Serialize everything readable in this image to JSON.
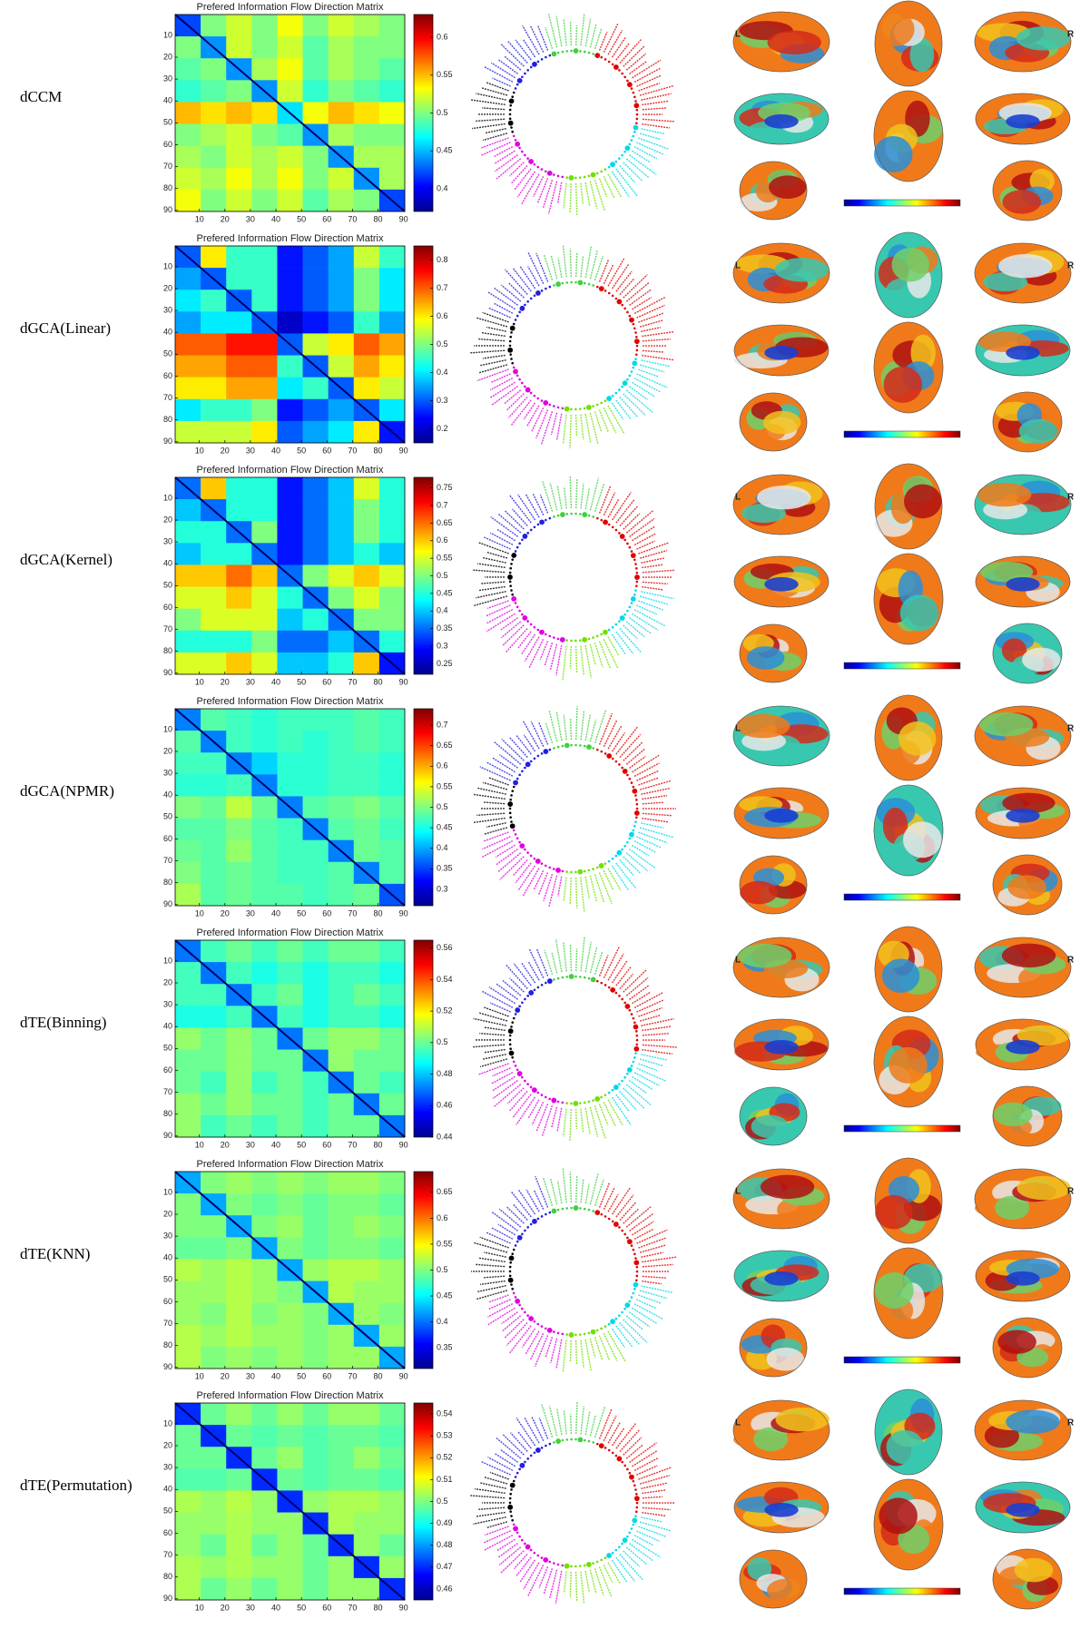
{
  "chart_data": [
    {
      "type": "heatmap",
      "row_label": "dCCM",
      "title": "Prefered Information Flow Direction Matrix",
      "xticks": [
        10,
        20,
        30,
        40,
        50,
        60,
        70,
        80,
        90
      ],
      "yticks": [
        10,
        20,
        30,
        40,
        50,
        60,
        70,
        80,
        90
      ],
      "xlim": [
        0.5,
        90.5
      ],
      "ylim": [
        0.5,
        90.5
      ],
      "y_inverted": true,
      "colormap": "jet",
      "zlim": [
        0.37,
        0.63
      ],
      "zticks": [
        0.4,
        0.45,
        0.5,
        0.55,
        0.6
      ],
      "brain_labels": [
        "L",
        "R"
      ],
      "values": [
        [
          0.42,
          0.5,
          0.52,
          0.5,
          0.53,
          0.5,
          0.52,
          0.51,
          0.5
        ],
        [
          0.5,
          0.44,
          0.52,
          0.5,
          0.52,
          0.49,
          0.51,
          0.5,
          0.5
        ],
        [
          0.49,
          0.5,
          0.44,
          0.51,
          0.53,
          0.49,
          0.51,
          0.5,
          0.49
        ],
        [
          0.48,
          0.49,
          0.5,
          0.44,
          0.52,
          0.48,
          0.5,
          0.49,
          0.48
        ],
        [
          0.55,
          0.54,
          0.55,
          0.54,
          0.46,
          0.53,
          0.55,
          0.54,
          0.53
        ],
        [
          0.5,
          0.51,
          0.52,
          0.5,
          0.49,
          0.44,
          0.51,
          0.5,
          0.5
        ],
        [
          0.51,
          0.5,
          0.52,
          0.51,
          0.52,
          0.5,
          0.44,
          0.51,
          0.51
        ],
        [
          0.52,
          0.51,
          0.53,
          0.51,
          0.53,
          0.5,
          0.52,
          0.44,
          0.51
        ],
        [
          0.53,
          0.5,
          0.52,
          0.5,
          0.52,
          0.49,
          0.51,
          0.5,
          0.42
        ]
      ]
    },
    {
      "type": "heatmap",
      "row_label": "dGCA(Linear)",
      "title": "Prefered Information Flow Direction Matrix",
      "xticks": [
        10,
        20,
        30,
        40,
        50,
        60,
        70,
        80,
        90
      ],
      "yticks": [
        10,
        20,
        30,
        40,
        50,
        60,
        70,
        80,
        90
      ],
      "xlim": [
        0.5,
        90.5
      ],
      "ylim": [
        0.5,
        90.5
      ],
      "y_inverted": true,
      "colormap": "jet",
      "zlim": [
        0.15,
        0.85
      ],
      "zticks": [
        0.2,
        0.3,
        0.4,
        0.5,
        0.6,
        0.7,
        0.8
      ],
      "brain_labels": [
        "L",
        "R"
      ],
      "values": [
        [
          0.3,
          0.6,
          0.45,
          0.45,
          0.25,
          0.3,
          0.35,
          0.55,
          0.45
        ],
        [
          0.35,
          0.3,
          0.45,
          0.45,
          0.25,
          0.3,
          0.35,
          0.5,
          0.4
        ],
        [
          0.4,
          0.45,
          0.3,
          0.45,
          0.25,
          0.3,
          0.35,
          0.5,
          0.4
        ],
        [
          0.35,
          0.4,
          0.4,
          0.3,
          0.2,
          0.25,
          0.3,
          0.45,
          0.35
        ],
        [
          0.7,
          0.7,
          0.75,
          0.75,
          0.3,
          0.55,
          0.6,
          0.7,
          0.65
        ],
        [
          0.65,
          0.65,
          0.7,
          0.7,
          0.45,
          0.3,
          0.55,
          0.65,
          0.6
        ],
        [
          0.6,
          0.6,
          0.65,
          0.65,
          0.4,
          0.45,
          0.3,
          0.6,
          0.55
        ],
        [
          0.4,
          0.45,
          0.45,
          0.5,
          0.25,
          0.3,
          0.35,
          0.3,
          0.4
        ],
        [
          0.55,
          0.55,
          0.55,
          0.6,
          0.3,
          0.35,
          0.4,
          0.6,
          0.25
        ]
      ]
    },
    {
      "type": "heatmap",
      "row_label": "dGCA(Kernel)",
      "title": "Prefered Information Flow Direction Matrix",
      "xticks": [
        10,
        20,
        30,
        40,
        50,
        60,
        70,
        80,
        90
      ],
      "yticks": [
        10,
        20,
        30,
        40,
        50,
        60,
        70,
        80,
        90
      ],
      "xlim": [
        0.5,
        90.5
      ],
      "ylim": [
        0.5,
        90.5
      ],
      "y_inverted": true,
      "colormap": "jet",
      "zlim": [
        0.22,
        0.78
      ],
      "zticks": [
        0.25,
        0.3,
        0.35,
        0.4,
        0.45,
        0.5,
        0.55,
        0.6,
        0.65,
        0.7,
        0.75
      ],
      "brain_labels": [
        "L",
        "R"
      ],
      "values": [
        [
          0.35,
          0.6,
          0.45,
          0.45,
          0.3,
          0.35,
          0.4,
          0.55,
          0.45
        ],
        [
          0.4,
          0.35,
          0.45,
          0.45,
          0.3,
          0.35,
          0.4,
          0.5,
          0.45
        ],
        [
          0.45,
          0.45,
          0.35,
          0.5,
          0.3,
          0.35,
          0.4,
          0.5,
          0.45
        ],
        [
          0.4,
          0.45,
          0.45,
          0.35,
          0.3,
          0.35,
          0.4,
          0.45,
          0.4
        ],
        [
          0.6,
          0.6,
          0.65,
          0.6,
          0.35,
          0.5,
          0.55,
          0.6,
          0.55
        ],
        [
          0.55,
          0.55,
          0.6,
          0.55,
          0.45,
          0.35,
          0.5,
          0.55,
          0.5
        ],
        [
          0.5,
          0.55,
          0.55,
          0.55,
          0.4,
          0.45,
          0.35,
          0.5,
          0.5
        ],
        [
          0.45,
          0.45,
          0.45,
          0.5,
          0.35,
          0.35,
          0.4,
          0.35,
          0.45
        ],
        [
          0.55,
          0.55,
          0.6,
          0.55,
          0.4,
          0.4,
          0.45,
          0.6,
          0.3
        ]
      ]
    },
    {
      "type": "heatmap",
      "row_label": "dGCA(NPMR)",
      "title": "Prefered Information Flow Direction Matrix",
      "xticks": [
        10,
        20,
        30,
        40,
        50,
        60,
        70,
        80,
        90
      ],
      "yticks": [
        10,
        20,
        30,
        40,
        50,
        60,
        70,
        80,
        90
      ],
      "xlim": [
        0.5,
        90.5
      ],
      "ylim": [
        0.5,
        90.5
      ],
      "y_inverted": true,
      "colormap": "jet",
      "zlim": [
        0.26,
        0.74
      ],
      "zticks": [
        0.3,
        0.35,
        0.4,
        0.45,
        0.5,
        0.55,
        0.6,
        0.65,
        0.7
      ],
      "brain_labels": [
        "L",
        "R"
      ],
      "values": [
        [
          0.38,
          0.48,
          0.47,
          0.46,
          0.47,
          0.47,
          0.47,
          0.48,
          0.47
        ],
        [
          0.48,
          0.38,
          0.47,
          0.46,
          0.47,
          0.46,
          0.47,
          0.48,
          0.47
        ],
        [
          0.47,
          0.47,
          0.38,
          0.42,
          0.46,
          0.46,
          0.47,
          0.47,
          0.46
        ],
        [
          0.46,
          0.46,
          0.47,
          0.38,
          0.46,
          0.46,
          0.47,
          0.47,
          0.46
        ],
        [
          0.5,
          0.49,
          0.53,
          0.49,
          0.38,
          0.48,
          0.49,
          0.5,
          0.48
        ],
        [
          0.48,
          0.48,
          0.5,
          0.48,
          0.47,
          0.38,
          0.48,
          0.49,
          0.47
        ],
        [
          0.49,
          0.48,
          0.51,
          0.48,
          0.47,
          0.47,
          0.38,
          0.49,
          0.48
        ],
        [
          0.5,
          0.48,
          0.49,
          0.48,
          0.47,
          0.47,
          0.48,
          0.38,
          0.48
        ],
        [
          0.52,
          0.48,
          0.49,
          0.48,
          0.48,
          0.47,
          0.48,
          0.49,
          0.36
        ]
      ]
    },
    {
      "type": "heatmap",
      "row_label": "dTE(Binning)",
      "title": "Prefered Information Flow Direction Matrix",
      "xticks": [
        10,
        20,
        30,
        40,
        50,
        60,
        70,
        80,
        90
      ],
      "yticks": [
        10,
        20,
        30,
        40,
        50,
        60,
        70,
        80,
        90
      ],
      "xlim": [
        0.5,
        90.5
      ],
      "ylim": [
        0.5,
        90.5
      ],
      "y_inverted": true,
      "colormap": "jet",
      "zlim": [
        0.44,
        0.565
      ],
      "zticks": [
        0.44,
        0.46,
        0.48,
        0.5,
        0.52,
        0.54,
        0.56
      ],
      "brain_labels": [
        "L",
        "R"
      ],
      "values": [
        [
          0.47,
          0.495,
          0.5,
          0.495,
          0.5,
          0.495,
          0.5,
          0.5,
          0.495
        ],
        [
          0.495,
          0.47,
          0.495,
          0.49,
          0.495,
          0.49,
          0.495,
          0.495,
          0.49
        ],
        [
          0.495,
          0.495,
          0.47,
          0.495,
          0.5,
          0.49,
          0.495,
          0.5,
          0.495
        ],
        [
          0.49,
          0.49,
          0.495,
          0.47,
          0.495,
          0.49,
          0.495,
          0.495,
          0.49
        ],
        [
          0.505,
          0.5,
          0.505,
          0.5,
          0.47,
          0.5,
          0.505,
          0.505,
          0.5
        ],
        [
          0.5,
          0.5,
          0.505,
          0.5,
          0.5,
          0.47,
          0.505,
          0.5,
          0.5
        ],
        [
          0.5,
          0.495,
          0.505,
          0.495,
          0.5,
          0.495,
          0.47,
          0.5,
          0.495
        ],
        [
          0.505,
          0.5,
          0.505,
          0.5,
          0.5,
          0.495,
          0.5,
          0.47,
          0.5
        ],
        [
          0.505,
          0.495,
          0.5,
          0.495,
          0.5,
          0.495,
          0.5,
          0.5,
          0.47
        ]
      ]
    },
    {
      "type": "heatmap",
      "row_label": "dTE(KNN)",
      "title": "Prefered Information Flow Direction Matrix",
      "xticks": [
        10,
        20,
        30,
        40,
        50,
        60,
        70,
        80,
        90
      ],
      "yticks": [
        10,
        20,
        30,
        40,
        50,
        60,
        70,
        80,
        90
      ],
      "xlim": [
        0.5,
        90.5
      ],
      "ylim": [
        0.5,
        90.5
      ],
      "y_inverted": true,
      "colormap": "jet",
      "zlim": [
        0.31,
        0.69
      ],
      "zticks": [
        0.35,
        0.4,
        0.45,
        0.5,
        0.55,
        0.6,
        0.65
      ],
      "brain_labels": [
        "L",
        "R"
      ],
      "values": [
        [
          0.42,
          0.5,
          0.51,
          0.5,
          0.51,
          0.5,
          0.51,
          0.51,
          0.5
        ],
        [
          0.5,
          0.42,
          0.5,
          0.49,
          0.5,
          0.49,
          0.5,
          0.5,
          0.49
        ],
        [
          0.5,
          0.5,
          0.42,
          0.5,
          0.51,
          0.49,
          0.5,
          0.51,
          0.5
        ],
        [
          0.49,
          0.49,
          0.5,
          0.42,
          0.5,
          0.49,
          0.5,
          0.5,
          0.49
        ],
        [
          0.52,
          0.51,
          0.52,
          0.51,
          0.42,
          0.51,
          0.52,
          0.52,
          0.51
        ],
        [
          0.51,
          0.51,
          0.52,
          0.51,
          0.5,
          0.42,
          0.52,
          0.51,
          0.51
        ],
        [
          0.51,
          0.5,
          0.52,
          0.5,
          0.51,
          0.5,
          0.42,
          0.51,
          0.5
        ],
        [
          0.52,
          0.51,
          0.52,
          0.51,
          0.51,
          0.5,
          0.51,
          0.42,
          0.51
        ],
        [
          0.52,
          0.5,
          0.51,
          0.5,
          0.51,
          0.5,
          0.51,
          0.51,
          0.42
        ]
      ]
    },
    {
      "type": "heatmap",
      "row_label": "dTE(Permutation)",
      "title": "Prefered Information Flow Direction Matrix",
      "xticks": [
        10,
        20,
        30,
        40,
        50,
        60,
        70,
        80,
        90
      ],
      "yticks": [
        10,
        20,
        30,
        40,
        50,
        60,
        70,
        80,
        90
      ],
      "xlim": [
        0.5,
        90.5
      ],
      "ylim": [
        0.5,
        90.5
      ],
      "y_inverted": true,
      "colormap": "jet",
      "zlim": [
        0.455,
        0.545
      ],
      "zticks": [
        0.46,
        0.47,
        0.48,
        0.49,
        0.5,
        0.51,
        0.52,
        0.53,
        0.54
      ],
      "brain_labels": [
        "L",
        "R"
      ],
      "values": [
        [
          0.47,
          0.498,
          0.502,
          0.498,
          0.502,
          0.498,
          0.502,
          0.502,
          0.498
        ],
        [
          0.498,
          0.47,
          0.498,
          0.496,
          0.498,
          0.496,
          0.498,
          0.498,
          0.496
        ],
        [
          0.498,
          0.498,
          0.47,
          0.498,
          0.502,
          0.496,
          0.498,
          0.502,
          0.498
        ],
        [
          0.496,
          0.496,
          0.498,
          0.47,
          0.498,
          0.496,
          0.498,
          0.498,
          0.496
        ],
        [
          0.504,
          0.502,
          0.505,
          0.502,
          0.47,
          0.502,
          0.504,
          0.504,
          0.502
        ],
        [
          0.502,
          0.502,
          0.504,
          0.502,
          0.502,
          0.47,
          0.504,
          0.502,
          0.502
        ],
        [
          0.502,
          0.498,
          0.504,
          0.498,
          0.502,
          0.498,
          0.47,
          0.502,
          0.498
        ],
        [
          0.504,
          0.502,
          0.504,
          0.502,
          0.502,
          0.498,
          0.502,
          0.47,
          0.502
        ],
        [
          0.504,
          0.498,
          0.502,
          0.498,
          0.502,
          0.498,
          0.502,
          0.502,
          0.47
        ]
      ]
    }
  ]
}
